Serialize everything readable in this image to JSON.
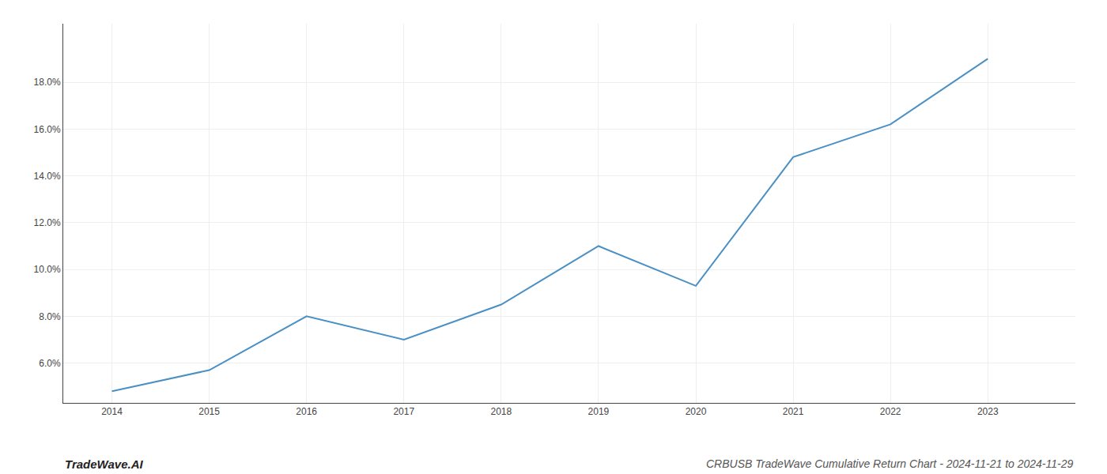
{
  "chart_data": {
    "type": "line",
    "title": "CRBUSB TradeWave Cumulative Return Chart - 2024-11-21 to 2024-11-29",
    "annotations": [
      "TradeWave.AI"
    ],
    "x": [
      2014,
      2015,
      2016,
      2017,
      2018,
      2019,
      2020,
      2021,
      2022,
      2023
    ],
    "values": [
      4.8,
      5.7,
      8.0,
      7.0,
      8.5,
      11.0,
      9.3,
      14.8,
      16.2,
      19.0
    ],
    "color": "#4a90c4",
    "xlim": [
      2013.5,
      2023.9
    ],
    "xticks": [
      2014,
      2015,
      2016,
      2017,
      2018,
      2019,
      2020,
      2021,
      2022,
      2023
    ],
    "ylim": [
      4.3,
      20.5
    ],
    "yticks": [
      {
        "value": 6.0,
        "label": "6.0%"
      },
      {
        "value": 8.0,
        "label": "8.0%"
      },
      {
        "value": 10.0,
        "label": "10.0%"
      },
      {
        "value": 12.0,
        "label": "12.0%"
      },
      {
        "value": 14.0,
        "label": "14.0%"
      },
      {
        "value": 16.0,
        "label": "16.0%"
      },
      {
        "value": 18.0,
        "label": "18.0%"
      }
    ],
    "grid": true
  }
}
